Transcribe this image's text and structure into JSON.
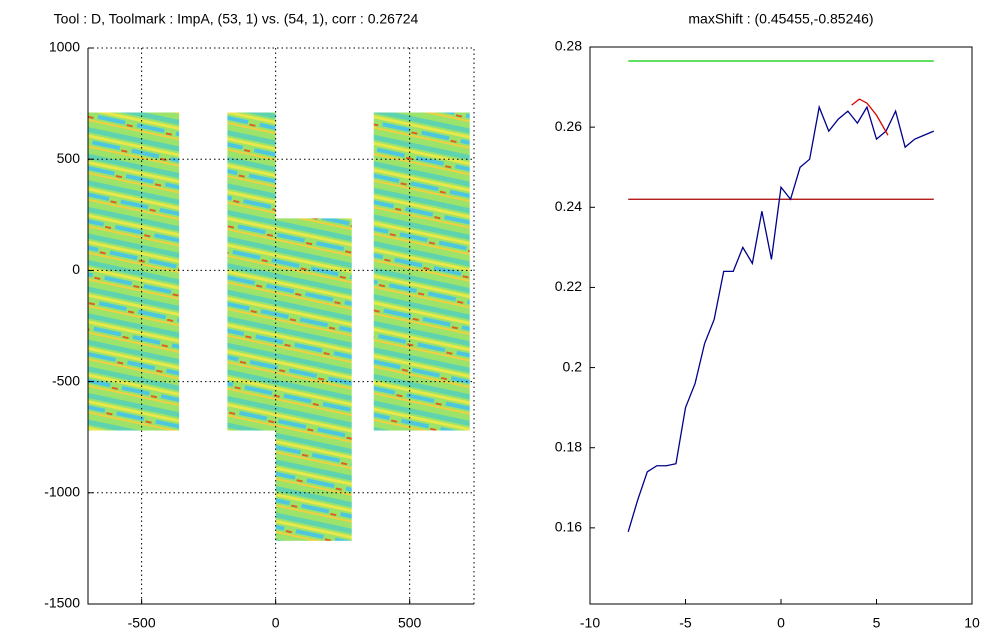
{
  "chart_data": [
    {
      "type": "image",
      "title": "Tool : D, Toolmark : ImpA, (53, 1) vs. (54, 1), corr : 0.26724",
      "xlim": [
        -700,
        740
      ],
      "ylim": [
        -1500,
        1000
      ],
      "xticks": [
        -500,
        0,
        500
      ],
      "yticks": [
        -1500,
        -1000,
        -500,
        0,
        500,
        1000
      ],
      "grid": true,
      "panels": [
        {
          "x": [
            -700,
            -360
          ],
          "y": [
            -720,
            710
          ]
        },
        {
          "x": [
            -180,
            0
          ],
          "y": [
            -720,
            710
          ]
        },
        {
          "x": [
            0,
            284
          ],
          "y": [
            -1216,
            234
          ]
        },
        {
          "x": [
            366,
            724
          ],
          "y": [
            -720,
            710
          ]
        }
      ]
    },
    {
      "type": "line",
      "title": "maxShift : (0.45455,-0.85246)",
      "xlim": [
        -10,
        10
      ],
      "ylim": [
        0.141,
        0.28
      ],
      "xticks": [
        -10,
        -5,
        0,
        5,
        10
      ],
      "yticks": [
        0.16,
        0.18,
        0.2,
        0.22,
        0.24,
        0.26,
        0.28
      ],
      "grid": false,
      "series": [
        {
          "color": "#00cc00",
          "x": [
            -8,
            8
          ],
          "values": [
            0.2765,
            0.2765
          ]
        },
        {
          "color": "#aa0000",
          "x": [
            -8,
            8
          ],
          "values": [
            0.242,
            0.242
          ]
        },
        {
          "color": "#00008b",
          "x": [
            -8,
            -7.5,
            -7,
            -6.5,
            -6,
            -5.5,
            -5,
            -4.5,
            -4,
            -3.5,
            -3,
            -2.5,
            -2,
            -1.5,
            -1,
            -0.5,
            0,
            0.5,
            1,
            1.5,
            2,
            2.5,
            3,
            3.5,
            4,
            4.5,
            5,
            5.5,
            6,
            6.5,
            7,
            7.5,
            8
          ],
          "values": [
            0.159,
            0.167,
            0.174,
            0.1755,
            0.1755,
            0.176,
            0.19,
            0.196,
            0.206,
            0.212,
            0.224,
            0.224,
            0.23,
            0.226,
            0.239,
            0.227,
            0.245,
            0.242,
            0.25,
            0.252,
            0.265,
            0.259,
            0.262,
            0.264,
            0.261,
            0.265,
            0.257,
            0.259,
            0.264,
            0.255,
            0.257,
            0.258,
            0.259
          ]
        },
        {
          "color": "#dd0000",
          "x": [
            3.7,
            4.1,
            4.5,
            5,
            5.6
          ],
          "values": [
            0.2655,
            0.267,
            0.266,
            0.263,
            0.258
          ]
        }
      ]
    }
  ]
}
